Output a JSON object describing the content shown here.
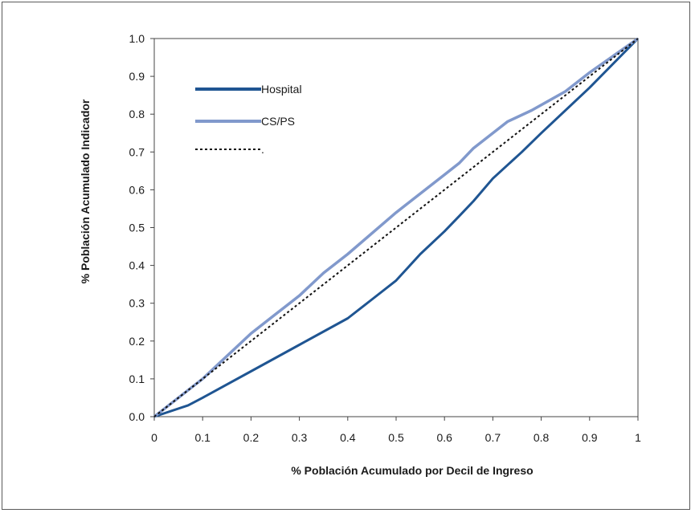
{
  "chart_data": {
    "type": "line",
    "xlabel": "% Población Acumulado por Decil de Ingreso",
    "ylabel": "% Población Acumulado Indicador",
    "xlim": [
      0,
      1
    ],
    "ylim": [
      0,
      1
    ],
    "x_ticks": [
      "0",
      "0.1",
      "0.2",
      "0.3",
      "0.4",
      "0.5",
      "0.6",
      "0.7",
      "0.8",
      "0.9",
      "1"
    ],
    "y_ticks": [
      "0.0",
      "0.1",
      "0.2",
      "0.3",
      "0.4",
      "0.5",
      "0.6",
      "0.7",
      "0.8",
      "0.9",
      "1.0"
    ],
    "grid": false,
    "legend_position": "top-left",
    "series": [
      {
        "name": "Hospital",
        "color": "#1f5592",
        "style": "solid",
        "points": [
          [
            0,
            0
          ],
          [
            0.07,
            0.03
          ],
          [
            0.1,
            0.05
          ],
          [
            0.2,
            0.12
          ],
          [
            0.3,
            0.19
          ],
          [
            0.4,
            0.26
          ],
          [
            0.45,
            0.31
          ],
          [
            0.5,
            0.36
          ],
          [
            0.55,
            0.43
          ],
          [
            0.6,
            0.49
          ],
          [
            0.63,
            0.53
          ],
          [
            0.66,
            0.57
          ],
          [
            0.7,
            0.63
          ],
          [
            0.76,
            0.7
          ],
          [
            0.8,
            0.75
          ],
          [
            0.9,
            0.87
          ],
          [
            1,
            1
          ]
        ]
      },
      {
        "name": "CS/PS",
        "color": "#8199cc",
        "style": "solid",
        "points": [
          [
            0,
            0
          ],
          [
            0.07,
            0.07
          ],
          [
            0.1,
            0.1
          ],
          [
            0.2,
            0.22
          ],
          [
            0.25,
            0.27
          ],
          [
            0.3,
            0.32
          ],
          [
            0.35,
            0.38
          ],
          [
            0.4,
            0.43
          ],
          [
            0.5,
            0.54
          ],
          [
            0.6,
            0.64
          ],
          [
            0.63,
            0.67
          ],
          [
            0.66,
            0.71
          ],
          [
            0.73,
            0.78
          ],
          [
            0.78,
            0.81
          ],
          [
            0.85,
            0.86
          ],
          [
            0.9,
            0.91
          ],
          [
            1,
            1
          ]
        ]
      },
      {
        "name": ".",
        "color": "#111111",
        "style": "dotted",
        "points": [
          [
            0,
            0
          ],
          [
            1,
            1
          ]
        ]
      }
    ]
  }
}
